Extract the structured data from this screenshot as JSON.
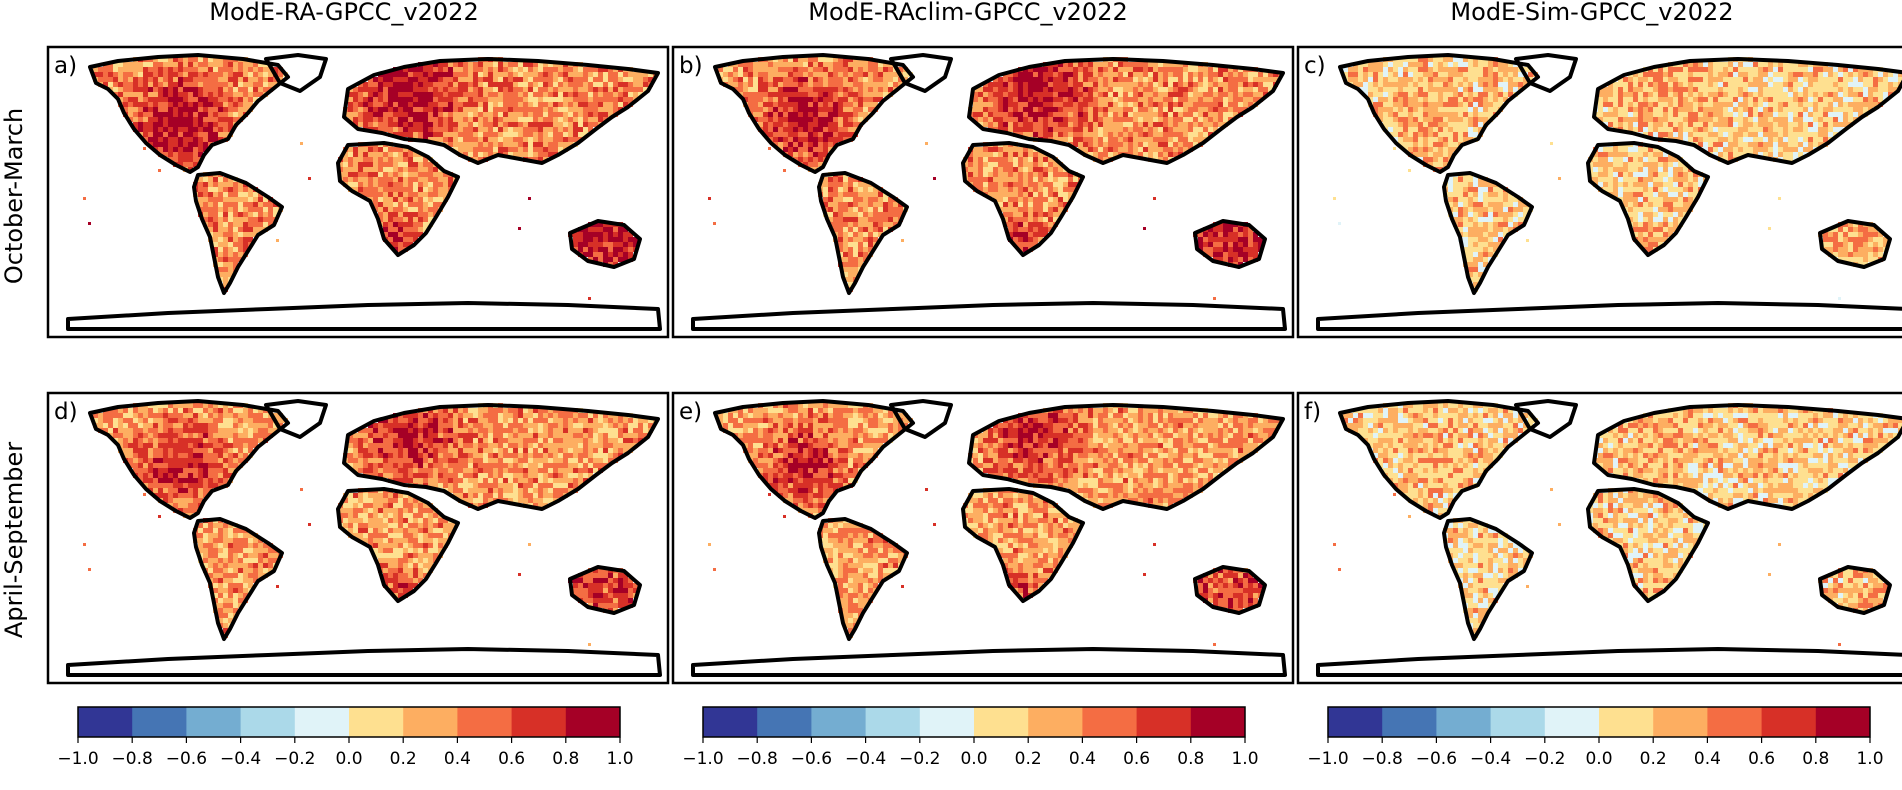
{
  "figure": {
    "columns": [
      "ModE-RA-GPCC_v2022",
      "ModE-RAclim-GPCC_v2022",
      "ModE-Sim-GPCC_v2022"
    ],
    "rows": [
      "October-March",
      "April-September"
    ],
    "panels": [
      {
        "label": "a)",
        "column": 0,
        "row": 0,
        "intensity": 1.0
      },
      {
        "label": "b)",
        "column": 1,
        "row": 0,
        "intensity": 0.95
      },
      {
        "label": "c)",
        "column": 2,
        "row": 0,
        "intensity": 0.3
      },
      {
        "label": "d)",
        "column": 0,
        "row": 1,
        "intensity": 0.85
      },
      {
        "label": "e)",
        "column": 1,
        "row": 1,
        "intensity": 0.8
      },
      {
        "label": "f)",
        "column": 2,
        "row": 1,
        "intensity": 0.25
      }
    ]
  },
  "colorbar": {
    "ticks": [
      "−1.0",
      "−0.8",
      "−0.6",
      "−0.4",
      "−0.2",
      "0.0",
      "0.2",
      "0.4",
      "0.6",
      "0.8",
      "1.0"
    ],
    "colors": [
      "#313695",
      "#4575b4",
      "#74add1",
      "#abd9e9",
      "#e0f3f8",
      "#fee090",
      "#fdae61",
      "#f46d43",
      "#d73027",
      "#a50026"
    ],
    "vmin": -1.0,
    "vmax": 1.0
  }
}
